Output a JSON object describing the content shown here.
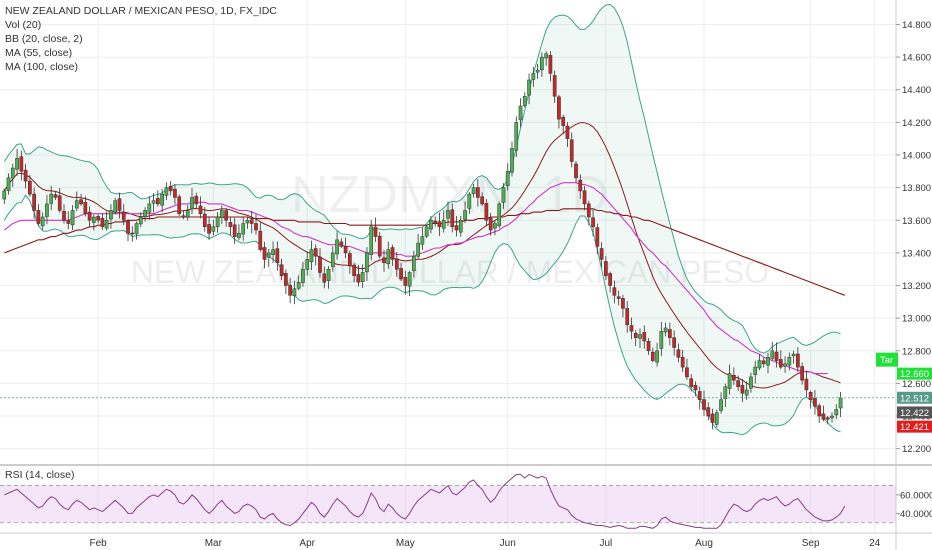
{
  "legend": {
    "title": "NEW ZEALAND DOLLAR / MEXICAN PESO, 1D, FX_IDC",
    "vol": "Vol (20)",
    "bb": "BB (20, close, 2)",
    "ma55": "MA (55, close)",
    "ma100": "MA (100, close)"
  },
  "watermark": {
    "symbol": "NZDMXN, 1D",
    "name": "NEW ZEALAND DOLLAR / MEXICAN PESO"
  },
  "rsi_label": "RSI (14, close)",
  "colors": {
    "up": "#4caf50",
    "down": "#c62828",
    "bb": "#3aa58b",
    "ma55": "#8b1a1a",
    "ma100": "#d633c7",
    "rsi": "#8a3a8a",
    "target": "#22e03a",
    "last": "#5a9a8a",
    "dark": "#555555",
    "low": "#e01e1e"
  },
  "badges": {
    "target_label": "Tar",
    "target": "12.660",
    "last": "12.512",
    "dark": "12.422",
    "low": "12.421"
  },
  "chart_data": {
    "type": "candlestick",
    "title": "NEW ZEALAND DOLLAR / MEXICAN PESO, 1D, FX_IDC",
    "ylim": [
      12.1,
      14.95
    ],
    "y_ticks": [
      12.2,
      12.4,
      12.6,
      12.8,
      13.0,
      13.2,
      13.4,
      13.6,
      13.8,
      14.0,
      14.2,
      14.4,
      14.6,
      14.8
    ],
    "y_tick_labels": [
      "12.200",
      "12.400",
      "12.600",
      "12.800",
      "13.000",
      "13.200",
      "13.400",
      "13.600",
      "13.800",
      "14.000",
      "14.200",
      "14.400",
      "14.600",
      "14.800"
    ],
    "x_labels": [
      "Feb",
      "Mar",
      "Apr",
      "May",
      "Jun",
      "Jul",
      "Aug",
      "Sep",
      "24"
    ],
    "x_label_days": [
      23,
      50,
      72,
      95,
      119,
      142,
      165,
      190,
      205
    ],
    "day_range": [
      0,
      210
    ],
    "close": [
      13.78,
      13.86,
      13.92,
      13.98,
      13.9,
      13.84,
      13.76,
      13.66,
      13.58,
      13.62,
      13.7,
      13.76,
      13.74,
      13.66,
      13.6,
      13.58,
      13.66,
      13.72,
      13.7,
      13.64,
      13.6,
      13.62,
      13.6,
      13.56,
      13.6,
      13.66,
      13.72,
      13.66,
      13.6,
      13.52,
      13.52,
      13.58,
      13.62,
      13.66,
      13.7,
      13.72,
      13.7,
      13.76,
      13.8,
      13.78,
      13.74,
      13.64,
      13.62,
      13.66,
      13.74,
      13.7,
      13.64,
      13.56,
      13.52,
      13.56,
      13.62,
      13.66,
      13.6,
      13.56,
      13.5,
      13.52,
      13.58,
      13.6,
      13.58,
      13.54,
      13.42,
      13.36,
      13.4,
      13.42,
      13.34,
      13.26,
      13.2,
      13.14,
      13.18,
      13.22,
      13.3,
      13.36,
      13.42,
      13.38,
      13.28,
      13.22,
      13.3,
      13.4,
      13.48,
      13.44,
      13.4,
      13.32,
      13.26,
      13.22,
      13.28,
      13.4,
      13.56,
      13.5,
      13.38,
      13.34,
      13.42,
      13.36,
      13.3,
      13.24,
      13.2,
      13.28,
      13.38,
      13.46,
      13.5,
      13.56,
      13.6,
      13.58,
      13.56,
      13.6,
      13.66,
      13.56,
      13.54,
      13.6,
      13.66,
      13.76,
      13.8,
      13.74,
      13.7,
      13.6,
      13.54,
      13.58,
      13.7,
      13.8,
      13.9,
      14.04,
      14.2,
      14.3,
      14.36,
      14.46,
      14.5,
      14.52,
      14.6,
      14.62,
      14.5,
      14.36,
      14.22,
      14.18,
      14.1,
      13.96,
      13.86,
      13.78,
      13.7,
      13.62,
      13.56,
      13.44,
      13.36,
      13.26,
      13.2,
      13.14,
      13.12,
      13.06,
      12.96,
      12.92,
      12.88,
      12.9,
      12.86,
      12.8,
      12.74,
      12.8,
      12.92,
      12.94,
      12.88,
      12.82,
      12.76,
      12.7,
      12.64,
      12.58,
      12.56,
      12.5,
      12.44,
      12.4,
      12.36,
      12.42,
      12.5,
      12.58,
      12.66,
      12.62,
      12.58,
      12.54,
      12.56,
      12.64,
      12.7,
      12.74,
      12.72,
      12.76,
      12.8,
      12.74,
      12.7,
      12.72,
      12.76,
      12.78,
      12.7,
      12.62,
      12.56,
      12.5,
      12.46,
      12.4,
      12.38,
      12.38,
      12.4,
      12.44,
      12.512
    ],
    "ma55": [
      13.54,
      13.56,
      13.58,
      13.59,
      13.6,
      13.6,
      13.6,
      13.6,
      13.6,
      13.6,
      13.6,
      13.6,
      13.6,
      13.6,
      13.6,
      13.6,
      13.61,
      13.62,
      13.63,
      13.64,
      13.64,
      13.64,
      13.64,
      13.64,
      13.64,
      13.64,
      13.64,
      13.64,
      13.64,
      13.64,
      13.64,
      13.64,
      13.64,
      13.64,
      13.64,
      13.64,
      13.65,
      13.66,
      13.67,
      13.68,
      13.69,
      13.7,
      13.7,
      13.7,
      13.71,
      13.71,
      13.71,
      13.71,
      13.7,
      13.7,
      13.7,
      13.7,
      13.69,
      13.68,
      13.67,
      13.66,
      13.66,
      13.66,
      13.65,
      13.64,
      13.63,
      13.62,
      13.61,
      13.6,
      13.58,
      13.56,
      13.55,
      13.54,
      13.52,
      13.51,
      13.5,
      13.5,
      13.49,
      13.48,
      13.47,
      13.46,
      13.45,
      13.45,
      13.45,
      13.45,
      13.44,
      13.44,
      13.43,
      13.42,
      13.41,
      13.4,
      13.4,
      13.4,
      13.4,
      13.4,
      13.4,
      13.4,
      13.39,
      13.39,
      13.38,
      13.38,
      13.38,
      13.39,
      13.4,
      13.41,
      13.42,
      13.43,
      13.43,
      13.44,
      13.45,
      13.45,
      13.46,
      13.46,
      13.47,
      13.48,
      13.49,
      13.5,
      13.5,
      13.51,
      13.52,
      13.53,
      13.54,
      13.56,
      13.57,
      13.59,
      13.61,
      13.64,
      13.66,
      13.69,
      13.71,
      13.74,
      13.76,
      13.78,
      13.8,
      13.81,
      13.82,
      13.83,
      13.83,
      13.83,
      13.83,
      13.82,
      13.82,
      13.81,
      13.8,
      13.78,
      13.76,
      13.73,
      13.7,
      13.67,
      13.64,
      13.61,
      13.58,
      13.55,
      13.51,
      13.48,
      13.45,
      13.42,
      13.4,
      13.37,
      13.34,
      13.32,
      13.29,
      13.26,
      13.23,
      13.2,
      13.17,
      13.14,
      13.11,
      13.08,
      13.05,
      13.01,
      12.98,
      12.95,
      12.93,
      12.91,
      12.89,
      12.87,
      12.86,
      12.84,
      12.82,
      12.8,
      12.79,
      12.78,
      12.76,
      12.75,
      12.74,
      12.73,
      12.72,
      12.71,
      12.7,
      12.69,
      12.68,
      12.68,
      12.67,
      12.67,
      12.66,
      12.66,
      12.66,
      12.66
    ],
    "ma100": [
      13.4,
      13.41,
      13.42,
      13.43,
      13.44,
      13.45,
      13.46,
      13.47,
      13.48,
      13.48,
      13.49,
      13.5,
      13.5,
      13.51,
      13.52,
      13.52,
      13.53,
      13.54,
      13.54,
      13.55,
      13.56,
      13.56,
      13.57,
      13.57,
      13.58,
      13.58,
      13.59,
      13.59,
      13.59,
      13.6,
      13.6,
      13.6,
      13.61,
      13.61,
      13.61,
      13.61,
      13.62,
      13.62,
      13.62,
      13.62,
      13.62,
      13.62,
      13.62,
      13.62,
      13.62,
      13.62,
      13.62,
      13.62,
      13.62,
      13.62,
      13.62,
      13.62,
      13.62,
      13.62,
      13.62,
      13.62,
      13.62,
      13.62,
      13.61,
      13.61,
      13.61,
      13.61,
      13.61,
      13.6,
      13.6,
      13.6,
      13.6,
      13.6,
      13.6,
      13.59,
      13.59,
      13.59,
      13.59,
      13.59,
      13.59,
      13.58,
      13.58,
      13.58,
      13.58,
      13.58,
      13.58,
      13.57,
      13.57,
      13.57,
      13.57,
      13.57,
      13.57,
      13.57,
      13.57,
      13.57,
      13.57,
      13.57,
      13.57,
      13.57,
      13.57,
      13.57,
      13.57,
      13.57,
      13.57,
      13.57,
      13.58,
      13.58,
      13.58,
      13.58,
      13.59,
      13.59,
      13.59,
      13.59,
      13.6,
      13.6,
      13.6,
      13.61,
      13.61,
      13.61,
      13.62,
      13.62,
      13.62,
      13.62,
      13.63,
      13.63,
      13.63,
      13.64,
      13.64,
      13.64,
      13.65,
      13.65,
      13.65,
      13.66,
      13.66,
      13.66,
      13.66,
      13.67,
      13.67,
      13.67,
      13.67,
      13.67,
      13.67,
      13.67,
      13.67,
      13.66,
      13.66,
      13.65,
      13.65,
      13.64,
      13.64,
      13.63,
      13.63,
      13.62,
      13.62,
      13.61,
      13.6,
      13.6,
      13.59,
      13.58,
      13.57,
      13.56,
      13.55,
      13.54,
      13.53,
      13.52,
      13.51,
      13.5,
      13.49,
      13.48,
      13.47,
      13.46,
      13.45,
      13.44,
      13.43,
      13.42,
      13.41,
      13.4,
      13.39,
      13.38,
      13.37,
      13.36,
      13.35,
      13.34,
      13.33,
      13.32,
      13.31,
      13.3,
      13.29,
      13.28,
      13.27,
      13.26,
      13.25,
      13.24,
      13.23,
      13.22,
      13.21,
      13.2,
      13.19,
      13.18,
      13.17,
      13.16,
      13.15,
      13.14
    ],
    "rsi": {
      "ylim": [
        20,
        90
      ],
      "y_ticks": [
        40,
        60
      ],
      "y_tick_labels": [
        "40.0000",
        "60.0000"
      ],
      "band": [
        30,
        70
      ],
      "values": [
        60,
        62,
        64,
        66,
        62,
        58,
        54,
        50,
        46,
        48,
        54,
        58,
        56,
        50,
        46,
        44,
        50,
        54,
        52,
        48,
        44,
        46,
        44,
        42,
        46,
        50,
        54,
        50,
        46,
        40,
        40,
        46,
        50,
        54,
        58,
        60,
        58,
        62,
        66,
        64,
        60,
        52,
        50,
        54,
        60,
        56,
        50,
        44,
        40,
        44,
        50,
        54,
        48,
        44,
        40,
        42,
        48,
        50,
        48,
        44,
        36,
        34,
        38,
        40,
        34,
        30,
        28,
        27,
        30,
        34,
        40,
        46,
        52,
        48,
        40,
        36,
        42,
        50,
        56,
        52,
        48,
        42,
        38,
        36,
        40,
        50,
        62,
        56,
        46,
        42,
        50,
        46,
        40,
        36,
        34,
        40,
        48,
        54,
        58,
        62,
        66,
        64,
        62,
        66,
        70,
        62,
        60,
        64,
        68,
        74,
        76,
        70,
        66,
        58,
        52,
        56,
        64,
        70,
        74,
        78,
        82,
        82,
        78,
        82,
        80,
        78,
        80,
        78,
        66,
        56,
        48,
        46,
        44,
        38,
        34,
        32,
        30,
        29,
        28,
        27,
        27,
        26,
        25,
        26,
        27,
        26,
        24,
        24,
        24,
        26,
        26,
        25,
        24,
        27,
        34,
        36,
        32,
        30,
        29,
        28,
        27,
        26,
        25,
        25,
        24,
        24,
        24,
        24,
        28,
        36,
        44,
        50,
        48,
        44,
        42,
        44,
        50,
        54,
        56,
        54,
        56,
        58,
        52,
        48,
        50,
        54,
        56,
        50,
        44,
        40,
        36,
        34,
        32,
        32,
        33,
        36,
        40,
        48
      ]
    }
  }
}
